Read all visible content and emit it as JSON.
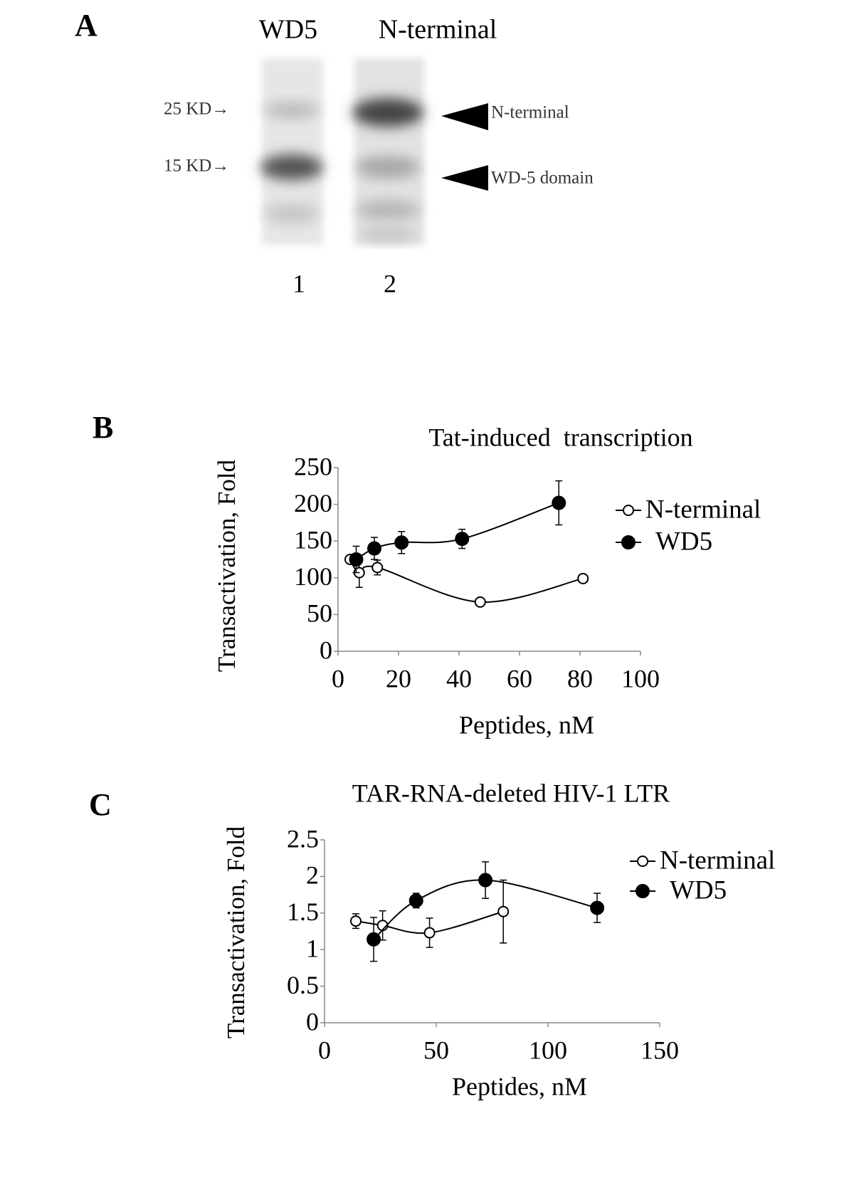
{
  "panel_a": {
    "label": "A",
    "lane_titles": [
      "WD5",
      "N-terminal"
    ],
    "markers": [
      "25 KD→",
      "15 KD→"
    ],
    "band_labels": [
      "N-terminal",
      "WD-5 domain"
    ],
    "lane_numbers": [
      "1",
      "2"
    ]
  },
  "chart_data": [
    {
      "panel": "B",
      "type": "line",
      "title": "Tat-induced  transcription",
      "x_label": "Peptides, nM",
      "y_label": "Transactivation, Fold",
      "xlim": [
        0,
        100
      ],
      "xticks": [
        0,
        20,
        40,
        60,
        80,
        100
      ],
      "ylim": [
        0,
        250
      ],
      "yticks": [
        0,
        50,
        100,
        150,
        200,
        250
      ],
      "legend": "right",
      "series": [
        {
          "name": "N-terminal",
          "color": "#000000",
          "marker": "open",
          "x": [
            4,
            7,
            13,
            47,
            81
          ],
          "values": [
            125,
            107,
            114,
            67,
            99
          ],
          "errors": [
            3,
            20,
            10,
            5,
            3
          ]
        },
        {
          "name": "WD5",
          "color": "#000000",
          "marker": "filled",
          "x": [
            6,
            12,
            21,
            41,
            73
          ],
          "values": [
            125,
            140,
            148,
            153,
            202
          ],
          "errors": [
            18,
            15,
            15,
            13,
            30
          ]
        }
      ]
    },
    {
      "panel": "C",
      "type": "line",
      "title": "TAR-RNA-deleted HIV-1 LTR",
      "x_label": "Peptides, nM",
      "y_label": "Transactivation, Fold",
      "xlim": [
        0,
        150
      ],
      "xticks": [
        0,
        50,
        100,
        150
      ],
      "ylim": [
        0,
        2.5
      ],
      "yticks": [
        0,
        0.5,
        1,
        1.5,
        2,
        2.5
      ],
      "legend": "right",
      "series": [
        {
          "name": "N-terminal",
          "color": "#000000",
          "marker": "open",
          "x": [
            14,
            26,
            47,
            80
          ],
          "values": [
            1.39,
            1.33,
            1.23,
            1.52
          ],
          "errors": [
            0.1,
            0.2,
            0.2,
            0.43
          ]
        },
        {
          "name": "WD5",
          "color": "#000000",
          "marker": "filled",
          "x": [
            22,
            41,
            72,
            122
          ],
          "values": [
            1.14,
            1.67,
            1.95,
            1.57
          ],
          "errors": [
            0.3,
            0.1,
            0.25,
            0.2
          ]
        }
      ]
    }
  ]
}
